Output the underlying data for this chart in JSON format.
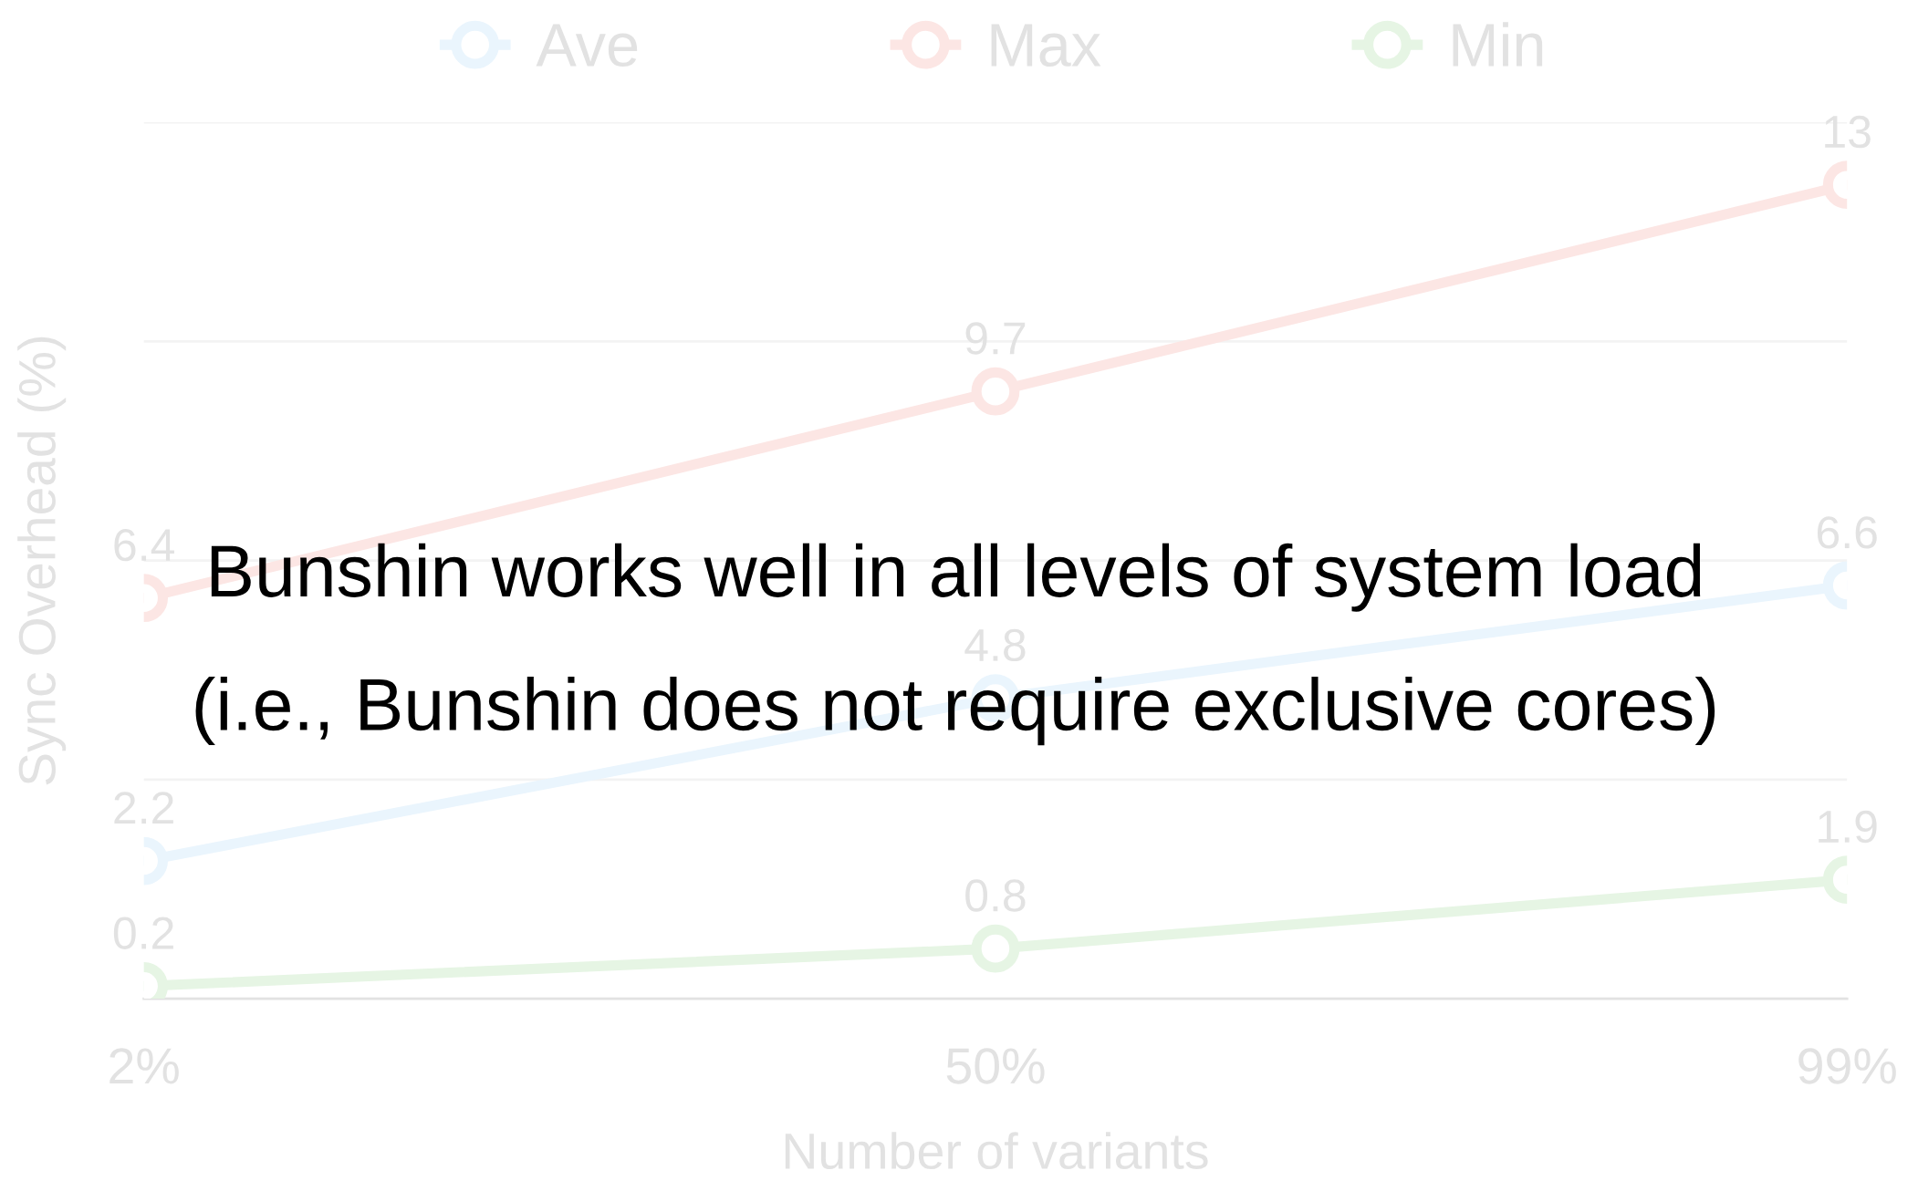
{
  "chart_data": {
    "type": "line",
    "categories": [
      "2%",
      "50%",
      "99%"
    ],
    "series": [
      {
        "name": "Ave",
        "color": "#eaf5fd",
        "values": [
          2.2,
          4.8,
          6.6
        ]
      },
      {
        "name": "Max",
        "color": "#fce6e4",
        "values": [
          6.4,
          9.7,
          13
        ]
      },
      {
        "name": "Min",
        "color": "#e6f5e4",
        "values": [
          0.2,
          0.8,
          1.9
        ]
      }
    ],
    "xlabel": "Number of variants",
    "ylabel": "Sync Overhead (%)",
    "ylim": [
      0,
      14
    ],
    "yticks": [
      {
        "value": 0,
        "label": null
      },
      {
        "value": 3.5,
        "label": null
      },
      {
        "value": 7,
        "label": null
      },
      {
        "value": 10.5,
        "label": null
      },
      {
        "value": 14,
        "label": null
      }
    ],
    "tick_labels": "x",
    "grid": "y",
    "legend": "top",
    "marker": "circle",
    "line_style": "solid",
    "data_labels": true,
    "annotations": [
      "Bunshin works well in all levels of system load",
      "(i.e., Bunshin does not require exclusive cores)"
    ]
  }
}
